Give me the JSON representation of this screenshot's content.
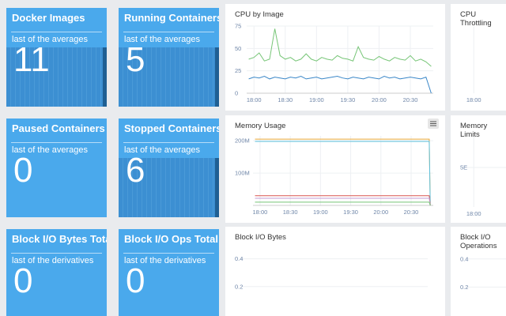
{
  "tiles": [
    {
      "title": "Docker Images",
      "subtitle": "last of the averages",
      "value": 11,
      "spark": true
    },
    {
      "title": "Running Containers",
      "subtitle": "last of the averages",
      "value": 5,
      "spark": true
    },
    {
      "title": "Paused Containers",
      "subtitle": "last of the averages",
      "value": 0,
      "spark": false
    },
    {
      "title": "Stopped Containers",
      "subtitle": "last of the averages",
      "value": 6,
      "spark": true
    },
    {
      "title": "Block I/O Bytes Total",
      "subtitle": "last of the derivatives",
      "value": 0,
      "spark": false
    },
    {
      "title": "Block I/O Ops Total",
      "subtitle": "last of the derivatives",
      "value": 0,
      "spark": false
    }
  ],
  "panels": [
    {
      "title": "CPU by Image",
      "chart": {
        "type": "line",
        "x": [
          "17:55",
          "18:00",
          "18:05",
          "18:10",
          "18:15",
          "18:20",
          "18:25",
          "18:30",
          "18:35",
          "18:40",
          "18:45",
          "18:50",
          "18:55",
          "19:00",
          "19:05",
          "19:10",
          "19:15",
          "19:20",
          "19:25",
          "19:30",
          "19:35",
          "19:40",
          "19:45",
          "19:50",
          "19:55",
          "20:00",
          "20:05",
          "20:10",
          "20:15",
          "20:20",
          "20:25",
          "20:30",
          "20:35",
          "20:40",
          "20:45",
          "20:50"
        ],
        "series": [
          {
            "color": "#76c576",
            "values": [
              38,
              40,
              45,
              36,
              38,
              72,
              42,
              38,
              40,
              36,
              38,
              44,
              38,
              36,
              40,
              38,
              37,
              42,
              39,
              38,
              36,
              52,
              40,
              38,
              37,
              41,
              38,
              36,
              40,
              38,
              37,
              42,
              36,
              38,
              35,
              30
            ]
          },
          {
            "color": "#3a87c8",
            "values": [
              16,
              18,
              17,
              19,
              16,
              18,
              17,
              16,
              18,
              17,
              19,
              16,
              17,
              18,
              16,
              17,
              18,
              19,
              17,
              16,
              18,
              17,
              16,
              18,
              17,
              16,
              19,
              17,
              18,
              16,
              17,
              18,
              17,
              16,
              18,
              0
            ]
          }
        ],
        "xlim": [
          "17:53",
          "20:52"
        ],
        "xticks": [
          "18:00",
          "18:30",
          "19:00",
          "19:30",
          "20:00",
          "20:30"
        ],
        "ylim": [
          0,
          75
        ],
        "yticks": [
          0,
          25,
          50,
          75
        ]
      }
    },
    {
      "title": "CPU Throttling",
      "chart": {
        "type": "line",
        "xlim": [
          "17:53",
          "20:52"
        ],
        "xticks": [
          "18:00"
        ]
      }
    },
    {
      "title": "Memory Usage",
      "chart": {
        "type": "line",
        "x": [
          "17:55",
          "20:48",
          "20:49"
        ],
        "series": [
          {
            "color": "#e8a838",
            "values": [
              205000000,
              205000000,
              0
            ]
          },
          {
            "color": "#5bc0de",
            "values": [
              198000000,
              198000000,
              0
            ]
          },
          {
            "color": "#d9534f",
            "values": [
              30000000,
              30000000,
              0
            ]
          },
          {
            "color": "#c39bd3",
            "values": [
              22000000,
              22000000,
              0
            ]
          },
          {
            "color": "#76c576",
            "values": [
              10000000,
              10000000,
              0
            ]
          }
        ],
        "xlim": [
          "17:53",
          "20:52"
        ],
        "xticks": [
          "18:00",
          "18:30",
          "19:00",
          "19:30",
          "20:00",
          "20:30"
        ],
        "ylim": [
          0,
          215000000
        ],
        "yticks": [
          {
            "value": 100000000,
            "label": "100M"
          },
          {
            "value": 200000000,
            "label": "200M"
          }
        ]
      }
    },
    {
      "title": "Memory Limits",
      "chart": {
        "type": "line",
        "xlim": [
          "17:53",
          "20:52"
        ],
        "xticks": [
          "18:00"
        ],
        "ylim": [
          0,
          9000000000000000000
        ],
        "yticks": [
          {
            "value": 5000000000000000000,
            "label": "5E"
          }
        ]
      }
    },
    {
      "title": "Block I/O Bytes",
      "chart": {
        "type": "line",
        "ylim": [
          0,
          0.5
        ],
        "yticks": [
          0.2,
          0.4
        ]
      }
    },
    {
      "title": "Block I/O Operations",
      "chart": {
        "type": "line",
        "ylim": [
          0,
          0.5
        ],
        "yticks": [
          0.2,
          0.4
        ]
      }
    }
  ]
}
